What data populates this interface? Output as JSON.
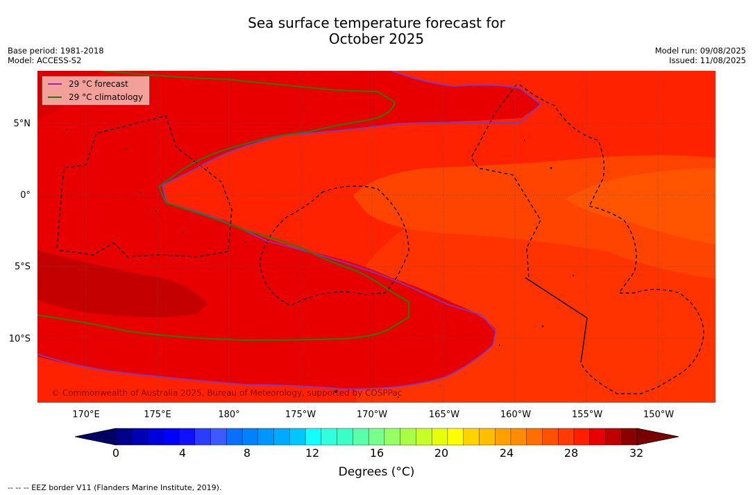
{
  "title_line1": "Sea surface temperature forecast for",
  "title_line2": "October 2025",
  "base_period": "Base period: 1981-2018",
  "model": "Model: ACCESS-S2",
  "model_run": "Model run: 09/08/2025",
  "issued": "Issued: 11/08/2025",
  "legend": {
    "forecast_label": "29 °C  forecast",
    "forecast_color": "#a020b0",
    "climatology_label": "29 °C  climatology",
    "climatology_color": "#1a7a10"
  },
  "lat_labels": [
    "5°N",
    "0°",
    "5°S",
    "10°S"
  ],
  "lon_labels": [
    "170°E",
    "175°E",
    "180°",
    "175°W",
    "170°W",
    "165°W",
    "160°W",
    "155°W",
    "150°W"
  ],
  "copyright": "© Commonwealth of Australia 2025, Bureau of Meteorology, supported by COSPPac",
  "colorbar": {
    "ticks": [
      "0",
      "4",
      "8",
      "12",
      "16",
      "20",
      "24",
      "28",
      "32"
    ],
    "label": "Degrees (°C)",
    "colors": [
      "#00008b",
      "#0000b4",
      "#0000dc",
      "#0000ff",
      "#1010ff",
      "#2a3cff",
      "#3c5aff",
      "#0a6eff",
      "#0082ff",
      "#0096ff",
      "#00aaff",
      "#00c8ff",
      "#14ffff",
      "#32ffdc",
      "#3cffc8",
      "#5affaa",
      "#78ff8c",
      "#96ff64",
      "#aaff46",
      "#c8ff28",
      "#e6ff0a",
      "#ffff00",
      "#ffd200",
      "#ffbe00",
      "#ffa000",
      "#ff8c00",
      "#ff6e00",
      "#ff5000",
      "#ff3c00",
      "#ff1e00",
      "#e60000",
      "#be0000",
      "#8b0000"
    ],
    "under_color": "#000064",
    "over_color": "#780000"
  },
  "footnote": "--  --  -- EEZ border V11 (Flanders Marine Institute, 2019)."
}
